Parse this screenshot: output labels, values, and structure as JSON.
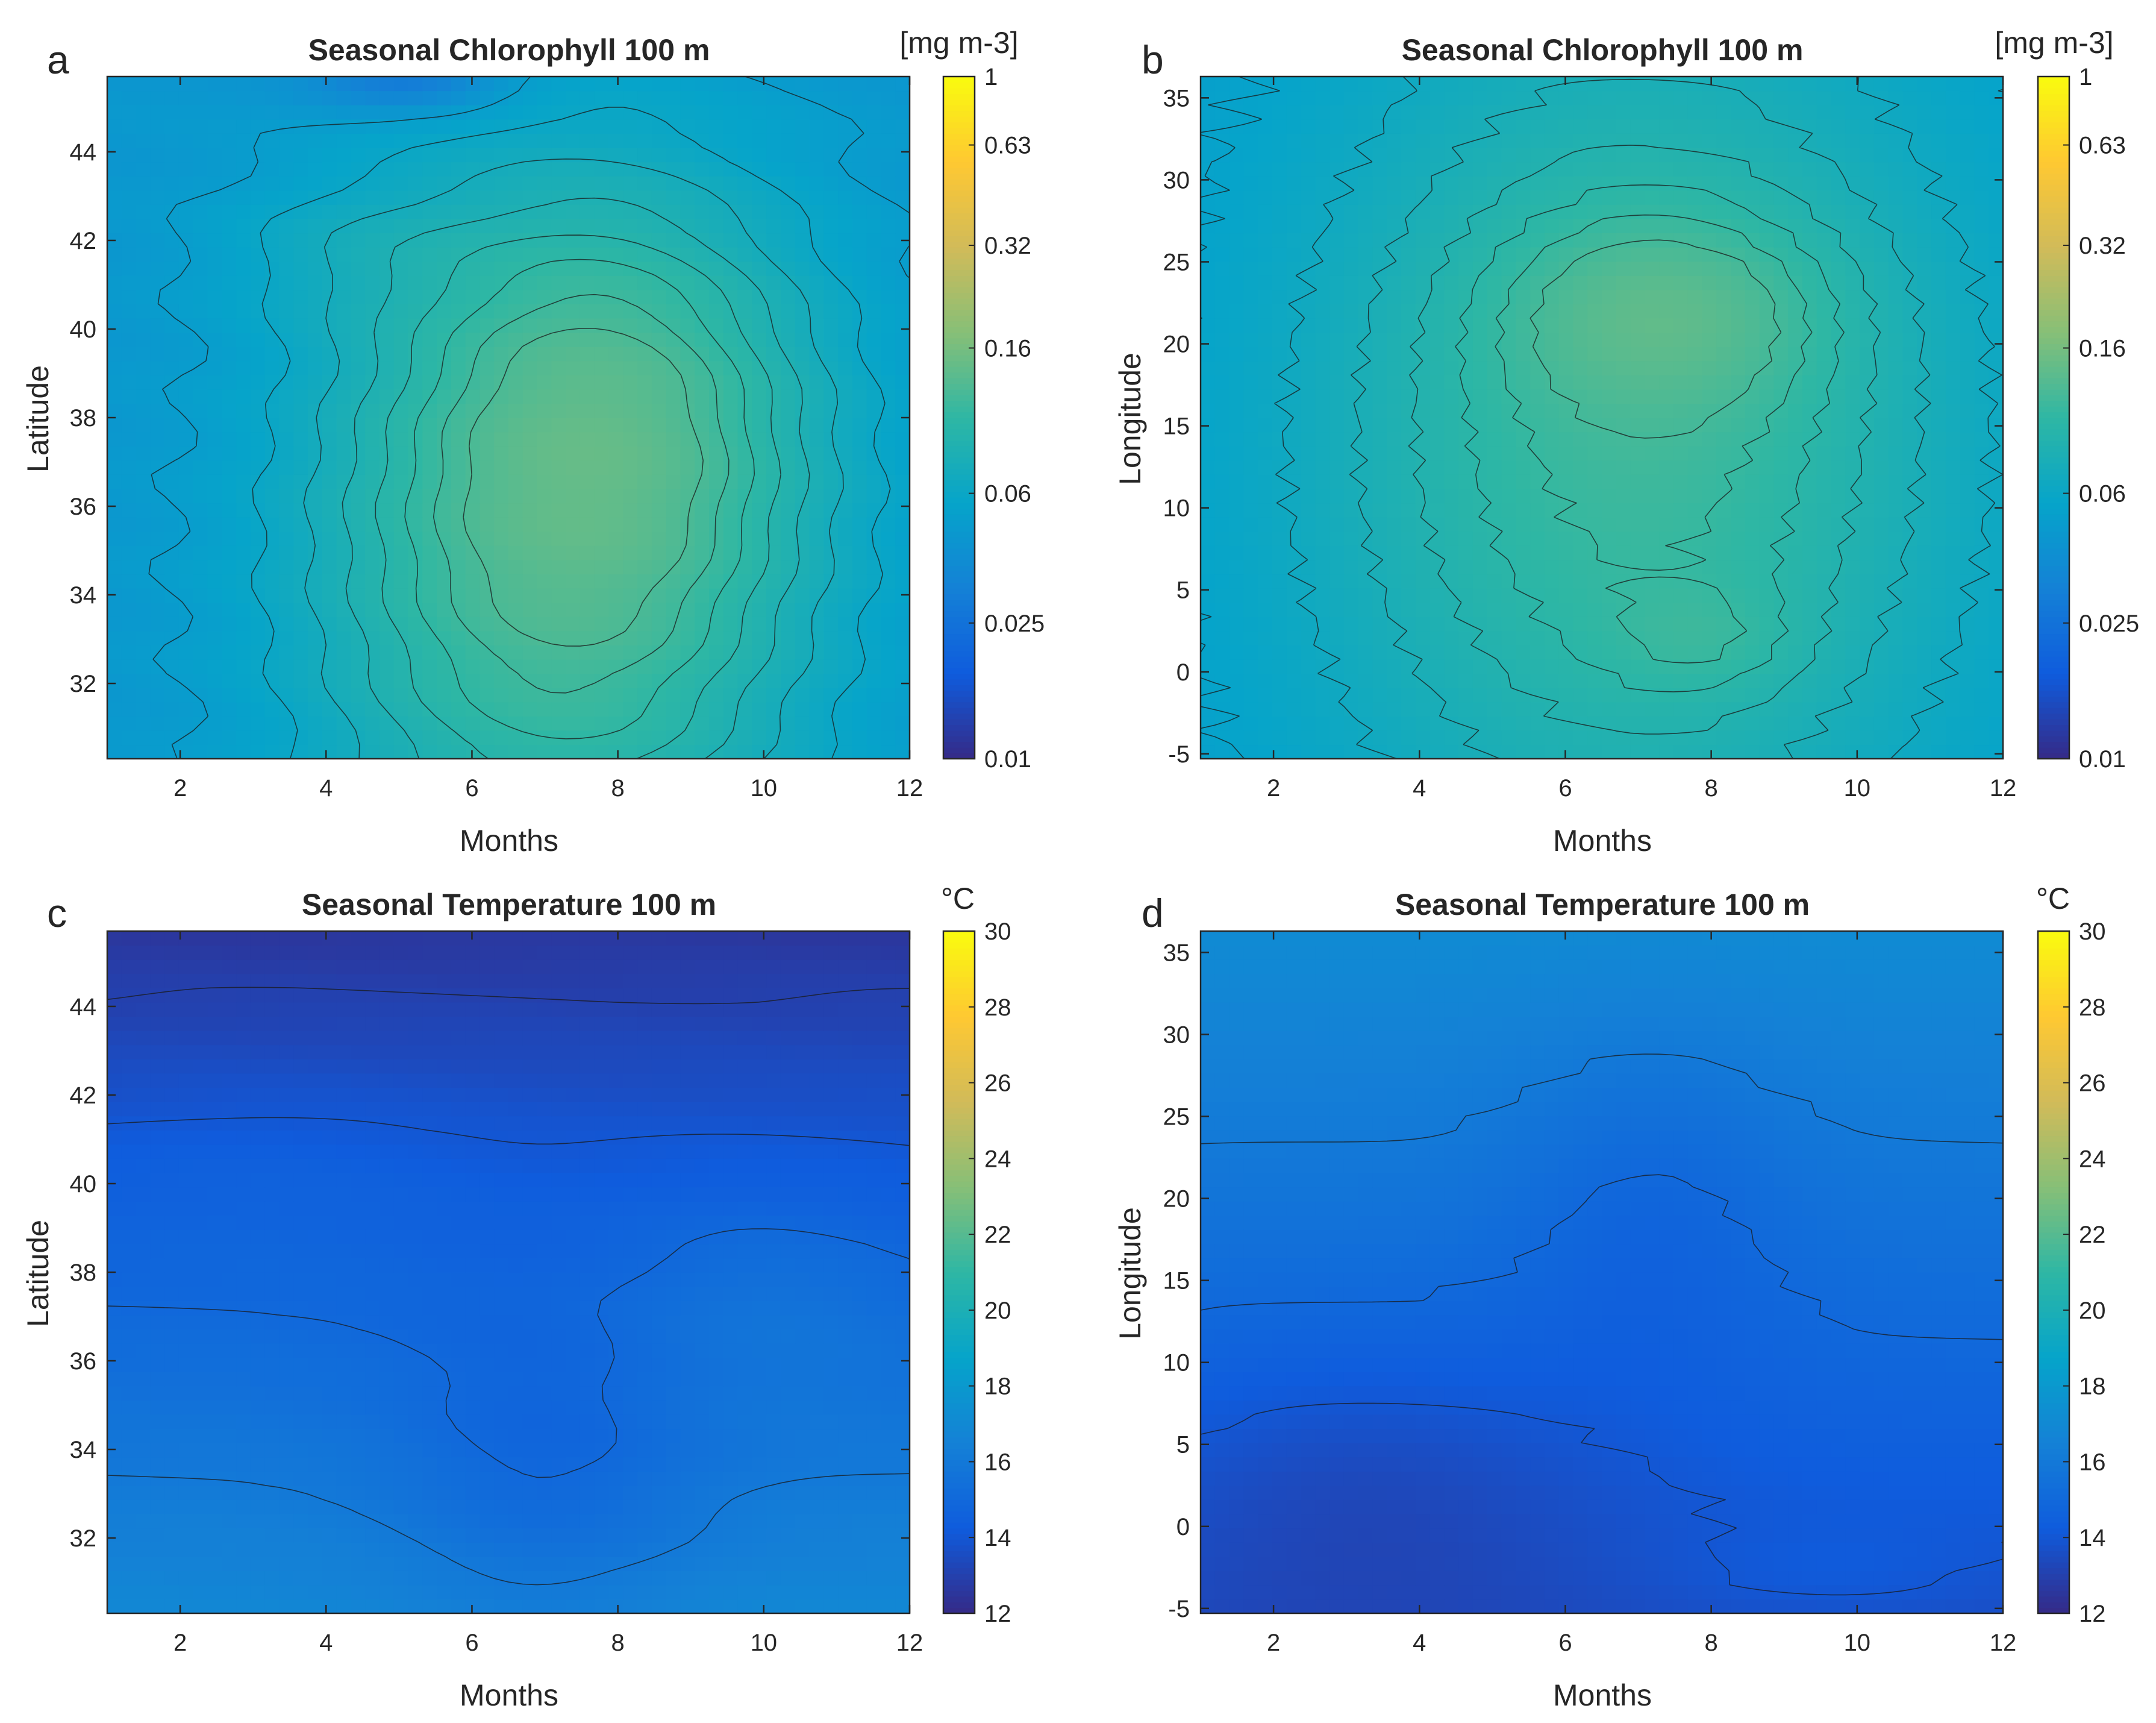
{
  "colors": {
    "parula": [
      "#352a87",
      "#0f5cdd",
      "#1481d6",
      "#06a4ca",
      "#2eb7a4",
      "#87bf77",
      "#d1bb59",
      "#fec832",
      "#f9fb0e"
    ],
    "contour_line": "#1a1a1a"
  },
  "chart_data": [
    {
      "type": "heatmap",
      "panel_label": "a",
      "title": "Seasonal Chlorophyll 100 m",
      "xlabel": "Months",
      "ylabel": "Latitude",
      "xlim": [
        1,
        12
      ],
      "ylim": [
        30.3,
        45.7
      ],
      "xticks": [
        2,
        4,
        6,
        8,
        10,
        12
      ],
      "yticks": [
        32,
        34,
        36,
        38,
        40,
        42,
        44
      ],
      "colorbar": {
        "unit": "[mg m-3]",
        "scale": "log",
        "range": [
          0.01,
          1
        ],
        "ticks": [
          0.01,
          0.025,
          0.06,
          0.16,
          0.32,
          0.63,
          1
        ]
      },
      "field": {
        "background": 0.045,
        "blobs": [
          {
            "x": 7.2,
            "y": 34.8,
            "sx": 2.3,
            "sy": 5.2,
            "a": 0.072
          },
          {
            "x": 8.0,
            "y": 38.4,
            "sx": 1.8,
            "sy": 3.2,
            "a": 0.038
          },
          {
            "x": 4.3,
            "y": 41.8,
            "sx": 1.4,
            "sy": 1.2,
            "a": 0.012
          },
          {
            "x": 5.2,
            "y": 45.6,
            "sx": 1.0,
            "sy": 0.45,
            "a": -0.024
          }
        ]
      },
      "contour_levels": [
        0.05,
        0.06,
        0.07,
        0.08,
        0.09,
        0.1,
        0.11,
        0.12
      ]
    },
    {
      "type": "heatmap",
      "panel_label": "b",
      "title": "Seasonal Chlorophyll 100 m",
      "xlabel": "Months",
      "ylabel": "Longitude",
      "xlim": [
        1,
        12
      ],
      "ylim": [
        -5.3,
        36.3
      ],
      "xticks": [
        2,
        4,
        6,
        8,
        10,
        12
      ],
      "yticks": [
        -5,
        0,
        5,
        10,
        15,
        20,
        25,
        30,
        35
      ],
      "colorbar": {
        "unit": "[mg m-3]",
        "scale": "log",
        "range": [
          0.01,
          1
        ],
        "ticks": [
          0.01,
          0.025,
          0.06,
          0.16,
          0.32,
          0.63,
          1
        ]
      },
      "field": {
        "background": 0.05,
        "blobs": [
          {
            "x": 7.0,
            "y": 14.0,
            "sx": 2.9,
            "sy": 17.0,
            "a": 0.06
          },
          {
            "x": 7.4,
            "y": 22.0,
            "sx": 1.5,
            "sy": 4.0,
            "a": 0.035
          },
          {
            "x": 7.9,
            "y": 2.0,
            "sx": 0.9,
            "sy": 2.2,
            "a": 0.015
          }
        ]
      },
      "contour_levels": [
        0.055,
        0.065,
        0.075,
        0.085,
        0.095,
        0.105,
        0.115
      ]
    },
    {
      "type": "heatmap",
      "panel_label": "c",
      "title": "Seasonal Temperature 100 m",
      "xlabel": "Months",
      "ylabel": "Latitude",
      "xlim": [
        1,
        12
      ],
      "ylim": [
        30.3,
        45.7
      ],
      "xticks": [
        2,
        4,
        6,
        8,
        10,
        12
      ],
      "yticks": [
        32,
        34,
        36,
        38,
        40,
        42,
        44
      ],
      "colorbar": {
        "unit": "°C",
        "scale": "linear",
        "range": [
          12,
          30
        ],
        "ticks": [
          12,
          14,
          16,
          18,
          20,
          22,
          24,
          26,
          28,
          30
        ]
      },
      "field": {
        "base": 16.9,
        "lat_slope": -0.28,
        "lat_ref": 30.3,
        "blobs": [
          {
            "x": 7.0,
            "y": 33.2,
            "sx": 1.5,
            "sy": 2.5,
            "a": -1.1
          },
          {
            "x": 10.0,
            "y": 37.5,
            "sx": 1.6,
            "sy": 1.8,
            "a": 0.7
          },
          {
            "x": 3.0,
            "y": 40.2,
            "sx": 2.2,
            "sy": 1.5,
            "a": 0.4
          }
        ]
      },
      "contour_levels": [
        13.0,
        14.0,
        15.0,
        16.0
      ]
    },
    {
      "type": "heatmap",
      "panel_label": "d",
      "title": "Seasonal Temperature 100 m",
      "xlabel": "Months",
      "ylabel": "Longitude",
      "xlim": [
        1,
        12
      ],
      "ylim": [
        -5.3,
        36.3
      ],
      "xticks": [
        2,
        4,
        6,
        8,
        10,
        12
      ],
      "yticks": [
        -5,
        0,
        5,
        10,
        15,
        20,
        25,
        30,
        35
      ],
      "colorbar": {
        "unit": "°C",
        "scale": "linear",
        "range": [
          12,
          30
        ],
        "ticks": [
          12,
          14,
          16,
          18,
          20,
          22,
          24,
          26,
          28,
          30
        ]
      },
      "field": {
        "base": 13.6,
        "lon_slope": 0.085,
        "lon_ref": -5.3,
        "blobs": [
          {
            "x": 3.3,
            "y": 3.0,
            "sx": 2.4,
            "sy": 6.5,
            "a": -0.9
          },
          {
            "x": 7.2,
            "y": 20.0,
            "sx": 1.4,
            "sy": 8.0,
            "a": -0.9
          },
          {
            "x": 9.5,
            "y": -3.0,
            "sx": 1.6,
            "sy": 2.0,
            "a": 0.4
          }
        ]
      },
      "contour_levels": [
        13.0,
        14.0,
        15.0,
        16.0
      ]
    }
  ]
}
